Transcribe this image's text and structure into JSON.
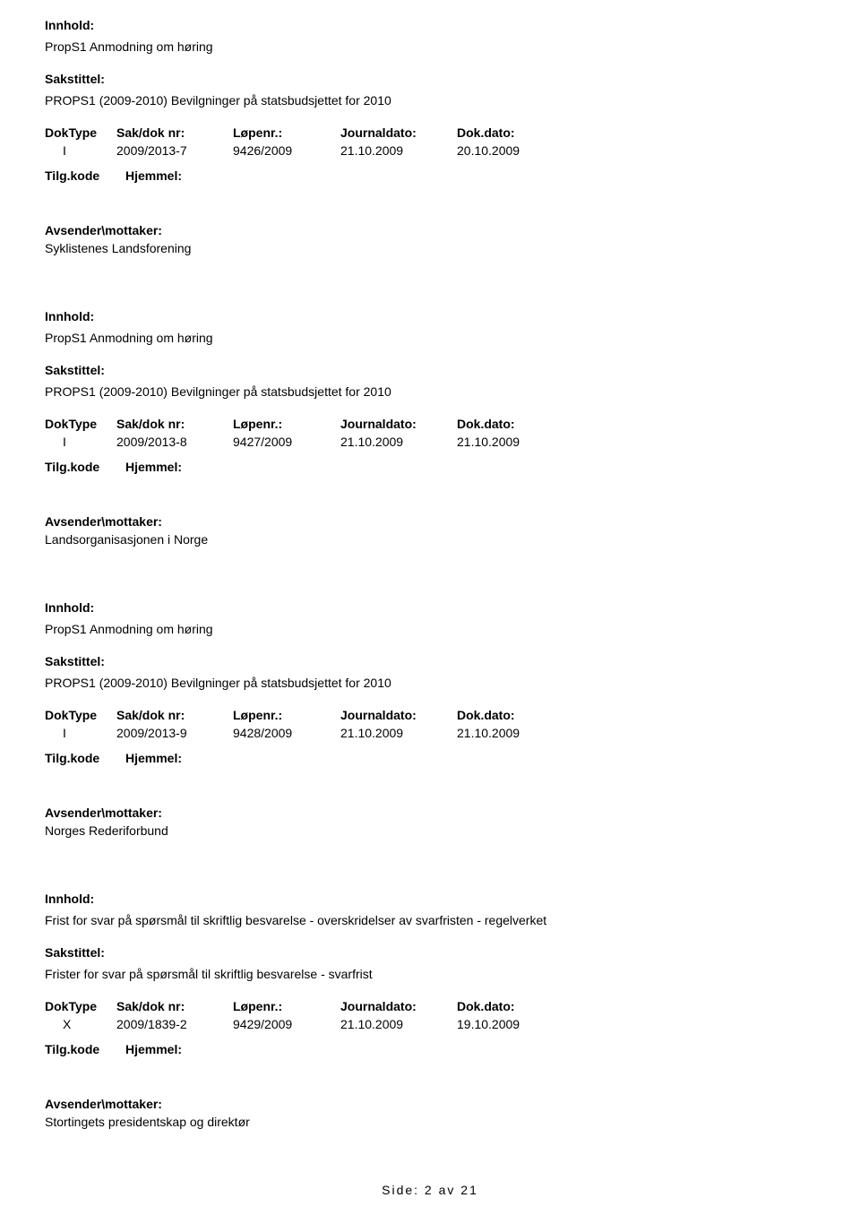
{
  "labels": {
    "innhold": "Innhold:",
    "sakstittel": "Sakstittel:",
    "doktype": "DokType",
    "sakdoknr": "Sak/dok nr:",
    "lopenr": "Løpenr.:",
    "journaldato": "Journaldato:",
    "dokdato": "Dok.dato:",
    "tilgkode": "Tilg.kode",
    "hjemmel": "Hjemmel:",
    "avsender": "Avsender\\mottaker:"
  },
  "records": [
    {
      "innhold": "PropS1 Anmodning om høring",
      "sakstittel": "PROPS1 (2009-2010) Bevilgninger på statsbudsjettet for 2010",
      "doktype": "I",
      "sakdoknr": "2009/2013-7",
      "lopenr": "9426/2009",
      "journaldato": "21.10.2009",
      "dokdato": "20.10.2009",
      "avsender": "Syklistenes Landsforening"
    },
    {
      "innhold": "PropS1 Anmodning om høring",
      "sakstittel": "PROPS1 (2009-2010) Bevilgninger på statsbudsjettet for 2010",
      "doktype": "I",
      "sakdoknr": "2009/2013-8",
      "lopenr": "9427/2009",
      "journaldato": "21.10.2009",
      "dokdato": "21.10.2009",
      "avsender": "Landsorganisasjonen i Norge"
    },
    {
      "innhold": "PropS1 Anmodning om høring",
      "sakstittel": "PROPS1 (2009-2010) Bevilgninger på statsbudsjettet for 2010",
      "doktype": "I",
      "sakdoknr": "2009/2013-9",
      "lopenr": "9428/2009",
      "journaldato": "21.10.2009",
      "dokdato": "21.10.2009",
      "avsender": "Norges Rederiforbund"
    },
    {
      "innhold": "Frist for svar på spørsmål til skriftlig besvarelse - overskridelser av svarfristen - regelverket",
      "sakstittel": "Frister for svar på spørsmål til skriftlig besvarelse - svarfrist",
      "doktype": "X",
      "sakdoknr": "2009/1839-2",
      "lopenr": "9429/2009",
      "journaldato": "21.10.2009",
      "dokdato": "19.10.2009",
      "avsender": "Stortingets presidentskap og direktør"
    }
  ],
  "footer": "Side: 2 av 21"
}
